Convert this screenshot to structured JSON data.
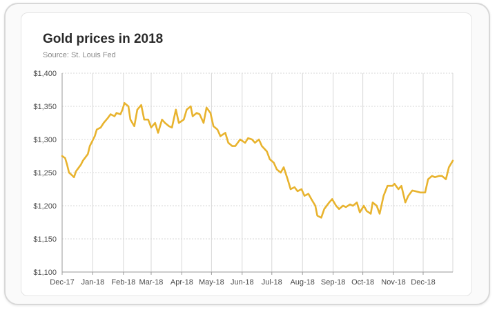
{
  "chart_data": {
    "type": "line",
    "title": "Gold prices in 2018",
    "subtitle": "Source: St. Louis Fed",
    "xlabel": "",
    "ylabel": "",
    "ylim": [
      1100,
      1400
    ],
    "yticks": [
      "$1,100",
      "$1,150",
      "$1,200",
      "$1,250",
      "$1,300",
      "$1,350",
      "$1,400"
    ],
    "ytick_values": [
      1100,
      1150,
      1200,
      1250,
      1300,
      1350,
      1400
    ],
    "xticks": [
      "Dec-17",
      "Jan-18",
      "Feb-18",
      "Mar-18",
      "Apr-18",
      "May-18",
      "Jun-18",
      "Jul-18",
      "Aug-18",
      "Sep-18",
      "Oct-18",
      "Nov-18",
      "Dec-18"
    ],
    "xlim": [
      "2017-12-01",
      "2018-12-31"
    ],
    "grid": true,
    "line_color": "#e8b32e",
    "series": [
      {
        "x": [
          "2017-12-01",
          "2017-12-04",
          "2017-12-06",
          "2017-12-08",
          "2017-12-11",
          "2017-12-13",
          "2017-12-15",
          "2017-12-18",
          "2017-12-20",
          "2017-12-22",
          "2017-12-27",
          "2017-12-29",
          "2018-01-03",
          "2018-01-05",
          "2018-01-09",
          "2018-01-12",
          "2018-01-16",
          "2018-01-19",
          "2018-01-23",
          "2018-01-25",
          "2018-01-29",
          "2018-01-31",
          "2018-02-02",
          "2018-02-06",
          "2018-02-08",
          "2018-02-12",
          "2018-02-15",
          "2018-02-19",
          "2018-02-22",
          "2018-02-26",
          "2018-03-01",
          "2018-03-05",
          "2018-03-08",
          "2018-03-12",
          "2018-03-15",
          "2018-03-19",
          "2018-03-22",
          "2018-03-26",
          "2018-03-29",
          "2018-04-03",
          "2018-04-06",
          "2018-04-10",
          "2018-04-12",
          "2018-04-16",
          "2018-04-19",
          "2018-04-23",
          "2018-04-26",
          "2018-04-30",
          "2018-05-03",
          "2018-05-07",
          "2018-05-10",
          "2018-05-15",
          "2018-05-18",
          "2018-05-22",
          "2018-05-25",
          "2018-05-30",
          "2018-06-04",
          "2018-06-07",
          "2018-06-11",
          "2018-06-14",
          "2018-06-18",
          "2018-06-21",
          "2018-06-26",
          "2018-06-29",
          "2018-07-03",
          "2018-07-06",
          "2018-07-10",
          "2018-07-13",
          "2018-07-17",
          "2018-07-20",
          "2018-07-24",
          "2018-07-27",
          "2018-07-31",
          "2018-08-03",
          "2018-08-07",
          "2018-08-10",
          "2018-08-14",
          "2018-08-16",
          "2018-08-20",
          "2018-08-23",
          "2018-08-28",
          "2018-08-31",
          "2018-09-04",
          "2018-09-07",
          "2018-09-11",
          "2018-09-14",
          "2018-09-18",
          "2018-09-21",
          "2018-09-25",
          "2018-09-28",
          "2018-10-02",
          "2018-10-05",
          "2018-10-09",
          "2018-10-11",
          "2018-10-15",
          "2018-10-18",
          "2018-10-22",
          "2018-10-26",
          "2018-10-31",
          "2018-11-02",
          "2018-11-06",
          "2018-11-09",
          "2018-11-13",
          "2018-11-16",
          "2018-11-20",
          "2018-11-23",
          "2018-11-28",
          "2018-12-03",
          "2018-12-06",
          "2018-12-10",
          "2018-12-13",
          "2018-12-17",
          "2018-12-20",
          "2018-12-24",
          "2018-12-27",
          "2018-12-31"
        ],
        "values": [
          1275,
          1272,
          1262,
          1250,
          1246,
          1243,
          1252,
          1258,
          1262,
          1268,
          1278,
          1290,
          1305,
          1315,
          1318,
          1325,
          1332,
          1338,
          1335,
          1340,
          1338,
          1345,
          1355,
          1350,
          1330,
          1320,
          1345,
          1352,
          1330,
          1330,
          1318,
          1325,
          1310,
          1330,
          1325,
          1320,
          1318,
          1345,
          1325,
          1330,
          1345,
          1350,
          1335,
          1340,
          1338,
          1325,
          1348,
          1340,
          1320,
          1315,
          1305,
          1310,
          1295,
          1290,
          1290,
          1300,
          1295,
          1302,
          1300,
          1295,
          1300,
          1290,
          1282,
          1270,
          1265,
          1255,
          1250,
          1258,
          1240,
          1225,
          1228,
          1222,
          1225,
          1215,
          1218,
          1210,
          1200,
          1185,
          1182,
          1195,
          1205,
          1210,
          1200,
          1195,
          1200,
          1198,
          1202,
          1200,
          1205,
          1190,
          1200,
          1192,
          1188,
          1205,
          1200,
          1188,
          1215,
          1230,
          1230,
          1233,
          1225,
          1230,
          1205,
          1215,
          1223,
          1222,
          1220,
          1220,
          1240,
          1245,
          1243,
          1245,
          1245,
          1240,
          1258,
          1268
        ]
      }
    ]
  }
}
